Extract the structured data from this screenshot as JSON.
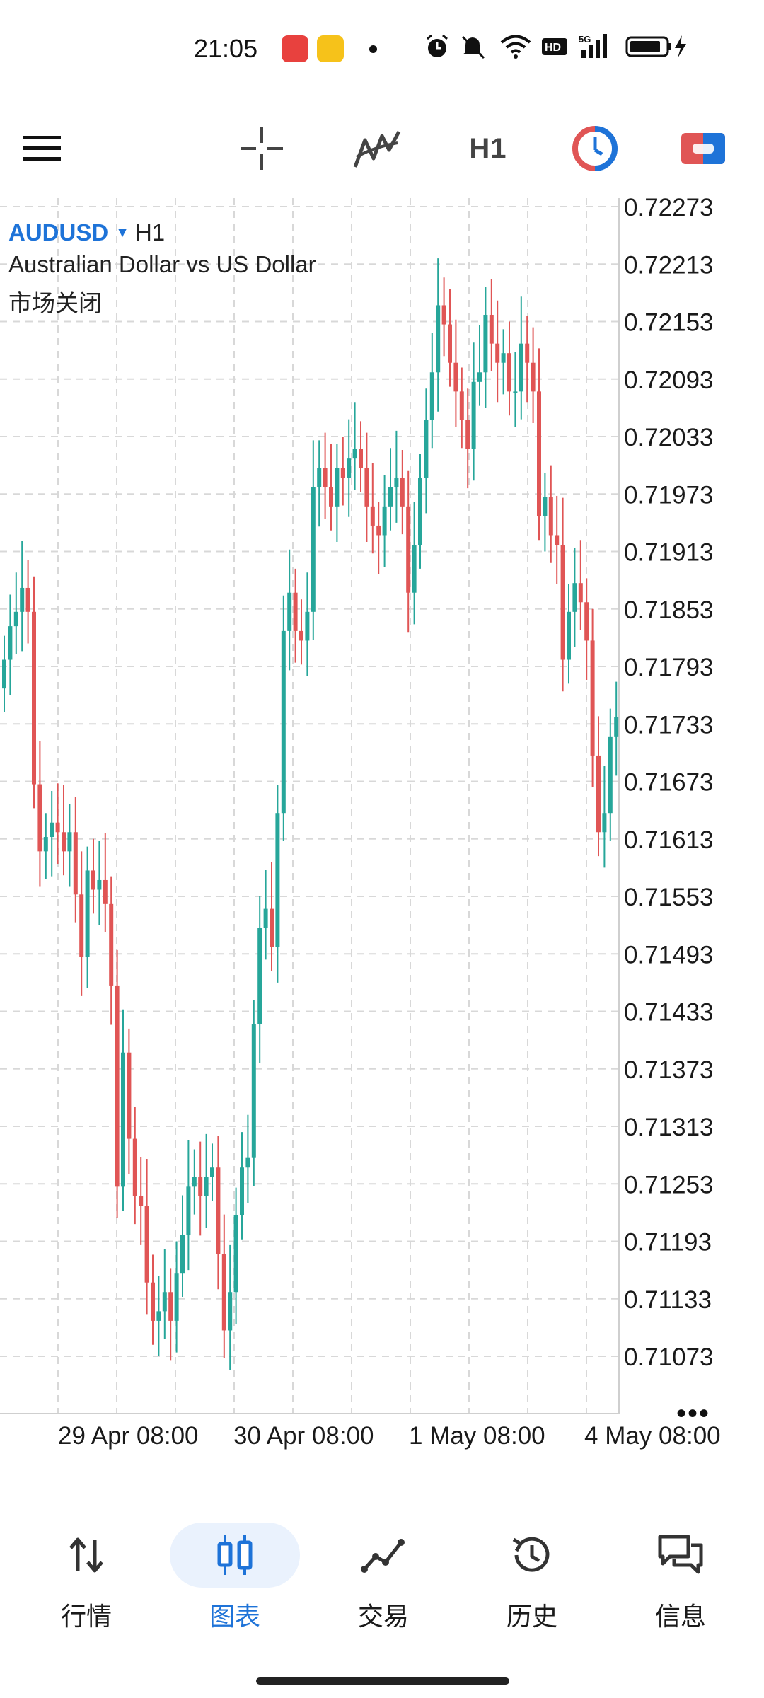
{
  "status_bar": {
    "time": "21:05"
  },
  "toolbar": {
    "timeframe": "H1"
  },
  "chart": {
    "symbol": "AUDUSD",
    "timeframe": "H1",
    "description": "Australian Dollar vs US Dollar",
    "market_status": "市场关闭",
    "more": "•••",
    "colors": {
      "bull": "#26a69a",
      "bear": "#e05555",
      "grid": "#d8d8d8"
    }
  },
  "chart_data": {
    "type": "candlestick",
    "title": "AUDUSD H1",
    "y_ticks": [
      "0.72273",
      "0.72213",
      "0.72153",
      "0.72093",
      "0.72033",
      "0.71973",
      "0.71913",
      "0.71853",
      "0.71793",
      "0.71733",
      "0.71673",
      "0.71613",
      "0.71553",
      "0.71493",
      "0.71433",
      "0.71373",
      "0.71313",
      "0.71253",
      "0.71193",
      "0.71133",
      "0.71073"
    ],
    "x_ticks": [
      "29 Apr 08:00",
      "30 Apr 08:00",
      "1 May 08:00",
      "4 May 08:00"
    ],
    "ylim": [
      0.7104,
      0.7229
    ],
    "closes": [
      0.718,
      0.71835,
      0.7185,
      0.71875,
      0.7185,
      0.7167,
      0.716,
      0.71615,
      0.7163,
      0.7162,
      0.716,
      0.7162,
      0.71555,
      0.7149,
      0.7158,
      0.7156,
      0.7157,
      0.71545,
      0.7146,
      0.7125,
      0.7139,
      0.713,
      0.7124,
      0.7123,
      0.7115,
      0.7111,
      0.7112,
      0.7114,
      0.7111,
      0.7116,
      0.712,
      0.7125,
      0.7126,
      0.7124,
      0.7126,
      0.7127,
      0.7118,
      0.711,
      0.7114,
      0.7122,
      0.7127,
      0.7128,
      0.7142,
      0.7152,
      0.7154,
      0.715,
      0.7164,
      0.7183,
      0.7187,
      0.7183,
      0.7182,
      0.7185,
      0.7198,
      0.72,
      0.7198,
      0.7196,
      0.72,
      0.7199,
      0.7201,
      0.7202,
      0.72,
      0.7196,
      0.7194,
      0.7193,
      0.7196,
      0.7198,
      0.7199,
      0.7196,
      0.7187,
      0.7192,
      0.7199,
      0.7205,
      0.721,
      0.7217,
      0.7215,
      0.7211,
      0.7208,
      0.7205,
      0.7202,
      0.7209,
      0.721,
      0.7216,
      0.7213,
      0.7211,
      0.7212,
      0.7208,
      0.7208,
      0.7213,
      0.7211,
      0.7208,
      0.7195,
      0.7197,
      0.7193,
      0.7192,
      0.718,
      0.7185,
      0.7188,
      0.7186,
      0.7182,
      0.717,
      0.7162,
      0.7164,
      0.7172,
      0.7174
    ]
  },
  "bottom_nav": {
    "items": [
      {
        "label": "行情",
        "icon": "quotes-arrows-icon"
      },
      {
        "label": "图表",
        "icon": "chart-candles-icon"
      },
      {
        "label": "交易",
        "icon": "trade-line-icon"
      },
      {
        "label": "历史",
        "icon": "history-clock-icon"
      },
      {
        "label": "信息",
        "icon": "messages-icon"
      }
    ],
    "active_index": 1
  }
}
